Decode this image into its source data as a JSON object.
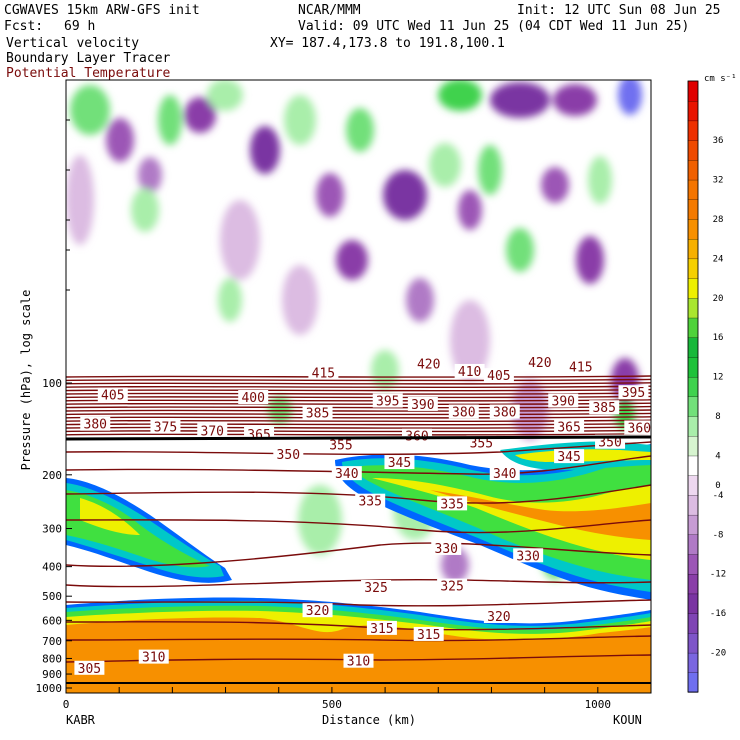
{
  "header": {
    "model_line": "CGWAVES 15km ARW-GFS init",
    "org": "NCAR/MMM",
    "init": "Init: 12 UTC Sun 08 Jun 25",
    "fcst_label": "Fcst:",
    "fcst_value": "69 h",
    "valid": "Valid: 09 UTC Wed 11 Jun 25 (04 CDT Wed 11 Jun 25)",
    "xy": "XY= 187.4,173.8 to 191.8,100.1",
    "fields": [
      "Vertical velocity",
      "Boundary Layer Tracer",
      "Potential Temperature"
    ],
    "field_colors": [
      "#000000",
      "#000000",
      "#7a0b0b"
    ]
  },
  "colorbar": {
    "units": "cm s⁻¹",
    "levels": [
      -22,
      -20,
      -18,
      -16,
      -14,
      -12,
      -10,
      -8,
      -6,
      -4,
      -2,
      2,
      4,
      6,
      8,
      10,
      12,
      14,
      16,
      18,
      20,
      22,
      24,
      26,
      28,
      30,
      32,
      34,
      36,
      38,
      40
    ],
    "colors": [
      "#6f6ff0",
      "#7a66e0",
      "#7e55c8",
      "#7f44b4",
      "#7a34a2",
      "#8a3ea8",
      "#9c56b6",
      "#b07ac6",
      "#c79cd4",
      "#dcbce2",
      "#eed8f0",
      "#ffffff",
      "#d7f5d0",
      "#a9eeaa",
      "#72e07a",
      "#3fd24e",
      "#1ec23a",
      "#18b83a",
      "#4fd23a",
      "#a9e630",
      "#eef000",
      "#f6d000",
      "#f7b000",
      "#f79000",
      "#f47a00",
      "#f47500",
      "#f06000",
      "#ef4a00",
      "#ee3000",
      "#e81400",
      "#e00000"
    ],
    "tick_labels": [
      "-20",
      "-16",
      "-12",
      "-8",
      "-4",
      "0",
      "4",
      "8",
      "12",
      "16",
      "20",
      "24",
      "28",
      "32",
      "36"
    ]
  },
  "y_axis": {
    "label": "Pressure (hPa), log scale",
    "ticks": [
      "100",
      "200",
      "300",
      "400",
      "500",
      "600",
      "700",
      "800",
      "900",
      "1000"
    ],
    "tick_values": [
      100,
      200,
      300,
      400,
      500,
      600,
      700,
      800,
      900,
      1000
    ]
  },
  "x_axis": {
    "label": "Distance (km)",
    "ticks": [
      "0",
      "500",
      "1000"
    ],
    "tick_values": [
      0,
      500,
      1000
    ],
    "end_left": "KABR",
    "end_right": "KOUN",
    "max_km": 1100
  },
  "theta_labels": [
    {
      "t": "420",
      "x": 0.62,
      "p": 87
    },
    {
      "t": "410",
      "x": 0.69,
      "p": 92
    },
    {
      "t": "405",
      "x": 0.74,
      "p": 95
    },
    {
      "t": "420",
      "x": 0.81,
      "p": 86
    },
    {
      "t": "415",
      "x": 0.88,
      "p": 89
    },
    {
      "t": "415",
      "x": 0.44,
      "p": 93
    },
    {
      "t": "405",
      "x": 0.08,
      "p": 110
    },
    {
      "t": "400",
      "x": 0.32,
      "p": 112
    },
    {
      "t": "395",
      "x": 0.55,
      "p": 115
    },
    {
      "t": "390",
      "x": 0.61,
      "p": 118
    },
    {
      "t": "390",
      "x": 0.85,
      "p": 115
    },
    {
      "t": "385",
      "x": 0.43,
      "p": 126
    },
    {
      "t": "380",
      "x": 0.68,
      "p": 125
    },
    {
      "t": "380",
      "x": 0.75,
      "p": 125
    },
    {
      "t": "385",
      "x": 0.92,
      "p": 121
    },
    {
      "t": "395",
      "x": 0.97,
      "p": 108
    },
    {
      "t": "380",
      "x": 0.05,
      "p": 137
    },
    {
      "t": "375",
      "x": 0.17,
      "p": 140
    },
    {
      "t": "370",
      "x": 0.25,
      "p": 144
    },
    {
      "t": "365",
      "x": 0.33,
      "p": 148
    },
    {
      "t": "365",
      "x": 0.86,
      "p": 140
    },
    {
      "t": "360",
      "x": 0.6,
      "p": 150
    },
    {
      "t": "360",
      "x": 0.98,
      "p": 141
    },
    {
      "t": "355",
      "x": 0.47,
      "p": 160
    },
    {
      "t": "355",
      "x": 0.71,
      "p": 158
    },
    {
      "t": "350",
      "x": 0.38,
      "p": 172
    },
    {
      "t": "350",
      "x": 0.93,
      "p": 157
    },
    {
      "t": "345",
      "x": 0.57,
      "p": 183
    },
    {
      "t": "345",
      "x": 0.86,
      "p": 175
    },
    {
      "t": "340",
      "x": 0.48,
      "p": 199
    },
    {
      "t": "340",
      "x": 0.75,
      "p": 199
    },
    {
      "t": "335",
      "x": 0.52,
      "p": 245
    },
    {
      "t": "335",
      "x": 0.66,
      "p": 250
    },
    {
      "t": "330",
      "x": 0.65,
      "p": 350
    },
    {
      "t": "330",
      "x": 0.79,
      "p": 370
    },
    {
      "t": "325",
      "x": 0.53,
      "p": 470
    },
    {
      "t": "325",
      "x": 0.66,
      "p": 465
    },
    {
      "t": "320",
      "x": 0.43,
      "p": 560
    },
    {
      "t": "320",
      "x": 0.74,
      "p": 585
    },
    {
      "t": "315",
      "x": 0.54,
      "p": 640
    },
    {
      "t": "315",
      "x": 0.62,
      "p": 670
    },
    {
      "t": "310",
      "x": 0.15,
      "p": 795
    },
    {
      "t": "310",
      "x": 0.5,
      "p": 820
    },
    {
      "t": "305",
      "x": 0.04,
      "p": 865
    }
  ]
}
